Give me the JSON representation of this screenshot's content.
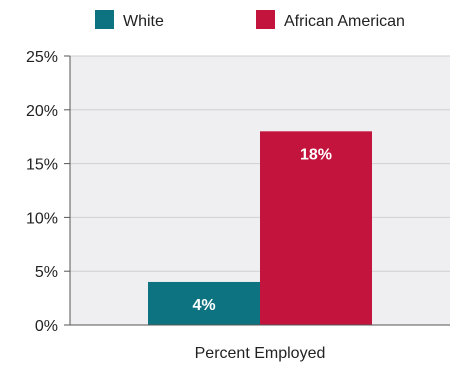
{
  "chart_data": {
    "type": "bar",
    "categories": [
      "Percent Employed"
    ],
    "series": [
      {
        "name": "White",
        "values": [
          4
        ],
        "label": "4%",
        "color": "#0e7380"
      },
      {
        "name": "African American",
        "values": [
          18
        ],
        "label": "18%",
        "color": "#c2143c"
      }
    ],
    "yticks": [
      "0%",
      "5%",
      "10%",
      "15%",
      "20%",
      "25%"
    ],
    "ylim": [
      0,
      25
    ],
    "grid": true,
    "legend": "top",
    "colors": {
      "plot_bg": "#efeff1",
      "grid": "#cfcfd4",
      "axis": "#555555"
    }
  }
}
